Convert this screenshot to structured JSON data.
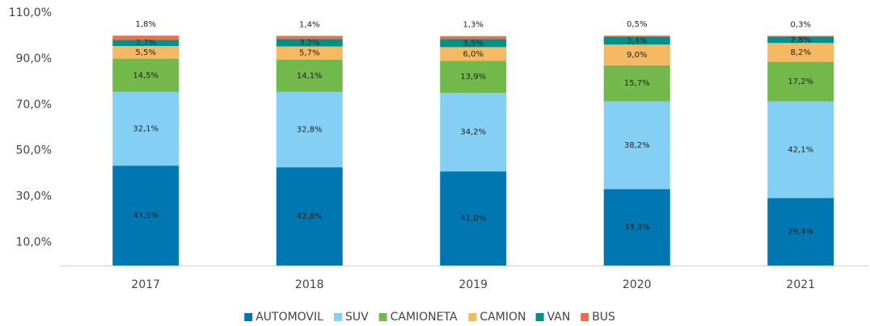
{
  "chart_data": {
    "type": "stacked_bar",
    "categories": [
      "2017",
      "2018",
      "2019",
      "2020",
      "2021"
    ],
    "ylim": [
      0,
      110
    ],
    "yticks": [
      {
        "value": 10,
        "label": "10,0%"
      },
      {
        "value": 30,
        "label": "30,0%"
      },
      {
        "value": 50,
        "label": "50,0%"
      },
      {
        "value": 70,
        "label": "70,0%"
      },
      {
        "value": 90,
        "label": "90,0%"
      },
      {
        "value": 110,
        "label": "110,0%"
      }
    ],
    "grid": false,
    "legend": "bottom",
    "series": [
      {
        "name": "AUTOMOVIL",
        "color": "#0077b0",
        "values": [
          43.5,
          42.8,
          41.0,
          33.3,
          29.4
        ],
        "value_labels": [
          "43,5%",
          "42,8%",
          "41,0%",
          "33,3%",
          "29,4%"
        ]
      },
      {
        "name": "SUV",
        "color": "#84d0f5",
        "values": [
          32.1,
          32.8,
          34.2,
          38.2,
          42.1
        ],
        "value_labels": [
          "32,1%",
          "32,8%",
          "34,2%",
          "38,2%",
          "42,1%"
        ]
      },
      {
        "name": "CAMIONETA",
        "color": "#72b84b",
        "values": [
          14.5,
          14.1,
          13.9,
          15.7,
          17.2
        ],
        "value_labels": [
          "14,5%",
          "14,1%",
          "13,9%",
          "15,7%",
          "17,2%"
        ]
      },
      {
        "name": "CAMION",
        "color": "#f5b963",
        "values": [
          5.5,
          5.7,
          6.0,
          9.0,
          8.2
        ],
        "value_labels": [
          "5,5%",
          "5,7%",
          "6,0%",
          "9,0%",
          "8,2%"
        ]
      },
      {
        "name": "VAN",
        "color": "#00908c",
        "values": [
          2.7,
          3.2,
          3.5,
          3.4,
          2.8
        ],
        "value_labels": [
          "2,7%",
          "3,2%",
          "3,5%",
          "3,4%",
          "2,8%"
        ]
      },
      {
        "name": "BUS",
        "color": "#e8704b",
        "values": [
          1.8,
          1.4,
          1.3,
          0.5,
          0.3
        ],
        "value_labels": [
          "1,8%",
          "1,4%",
          "1,3%",
          "0,5%",
          "0,3%"
        ]
      }
    ]
  }
}
